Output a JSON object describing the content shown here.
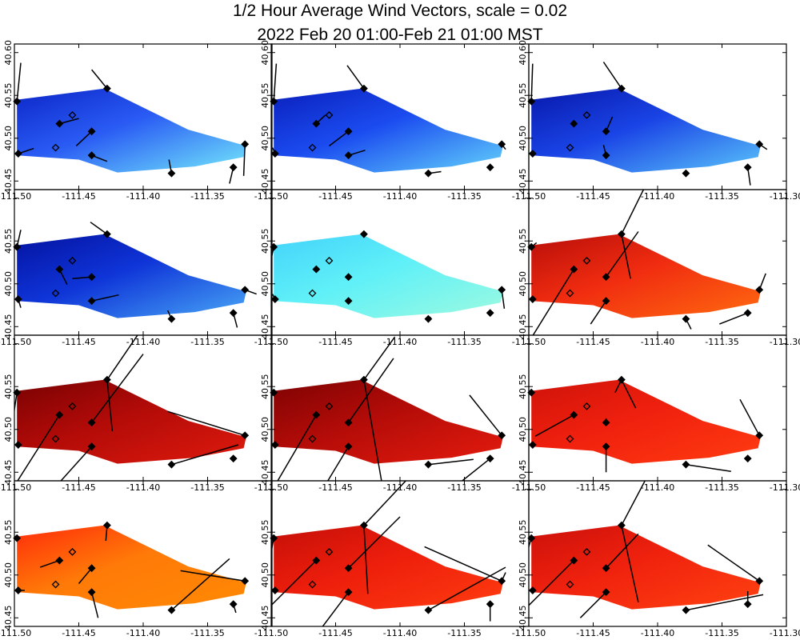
{
  "title": {
    "line1": "1/2 Hour Average Wind Vectors, scale =  0.02",
    "line2": "2022 Feb 20 01:00-Feb 21 01:00 MST"
  },
  "chart_data": {
    "type": "vector-field-small-multiples",
    "grid": {
      "rows": 4,
      "cols": 3
    },
    "xlim": [
      -111.5,
      -111.3
    ],
    "ylim": [
      40.44,
      40.61
    ],
    "x_ticks": [
      -111.5,
      -111.45,
      -111.4,
      -111.35,
      -111.3
    ],
    "y_ticks": [
      40.45,
      40.5,
      40.55,
      40.6
    ],
    "x_tick_labels": [
      "-111.50",
      "-111.45",
      "-111.40",
      "-111.35",
      "-111.30"
    ],
    "y_tick_labels": [
      "40.45",
      "40.50",
      "40.55",
      "40.60"
    ],
    "domain_polygon": [
      [
        -111.498,
        40.545
      ],
      [
        -111.43,
        40.558
      ],
      [
        -111.365,
        40.51
      ],
      [
        -111.32,
        40.491
      ],
      [
        -111.322,
        40.478
      ],
      [
        -111.36,
        40.467
      ],
      [
        -111.42,
        40.46
      ],
      [
        -111.45,
        40.475
      ],
      [
        -111.498,
        40.48
      ]
    ],
    "stations": [
      {
        "x": -111.498,
        "y": 40.543,
        "filled": true
      },
      {
        "x": -111.428,
        "y": 40.558,
        "filled": true
      },
      {
        "x": -111.465,
        "y": 40.517,
        "filled": true
      },
      {
        "x": -111.455,
        "y": 40.527,
        "filled": false
      },
      {
        "x": -111.44,
        "y": 40.508,
        "filled": true
      },
      {
        "x": -111.468,
        "y": 40.489,
        "filled": false
      },
      {
        "x": -111.497,
        "y": 40.482,
        "filled": true
      },
      {
        "x": -111.44,
        "y": 40.48,
        "filled": true
      },
      {
        "x": -111.378,
        "y": 40.459,
        "filled": true
      },
      {
        "x": -111.33,
        "y": 40.466,
        "filled": true
      },
      {
        "x": -111.321,
        "y": 40.493,
        "filled": true
      }
    ],
    "panels": [
      {
        "colors": [
          "#74e9fb",
          "#2a5cf4",
          "#0c26c8"
        ],
        "vectors": [
          [
            -111.498,
            40.543,
            0.003,
            0.045
          ],
          [
            -111.428,
            40.558,
            -0.012,
            0.022
          ],
          [
            -111.465,
            40.517,
            0.015,
            0.006
          ],
          [
            -111.44,
            40.508,
            -0.012,
            -0.017
          ],
          [
            -111.497,
            40.482,
            0.012,
            0.006
          ],
          [
            -111.44,
            40.48,
            0.012,
            -0.007
          ],
          [
            -111.378,
            40.459,
            -0.002,
            0.016
          ],
          [
            -111.33,
            40.466,
            -0.003,
            -0.019
          ],
          [
            -111.321,
            40.493,
            -0.001,
            -0.037
          ]
        ]
      },
      {
        "colors": [
          "#63d3fb",
          "#1b4cf0",
          "#0a1fbc"
        ],
        "vectors": [
          [
            -111.498,
            40.543,
            0.002,
            0.044
          ],
          [
            -111.428,
            40.558,
            -0.013,
            0.027
          ],
          [
            -111.465,
            40.517,
            0.007,
            0.01
          ],
          [
            -111.44,
            40.508,
            -0.015,
            -0.017
          ],
          [
            -111.44,
            40.48,
            0.013,
            0.006
          ],
          [
            -111.497,
            40.482,
            -0.002,
            0.007
          ],
          [
            -111.378,
            40.459,
            0.01,
            0.002
          ],
          [
            -111.321,
            40.493,
            0.003,
            -0.006
          ]
        ]
      },
      {
        "colors": [
          "#5ac5fa",
          "#1a44e6",
          "#0718aa"
        ],
        "vectors": [
          [
            -111.498,
            40.543,
            0.001,
            0.044
          ],
          [
            -111.428,
            40.558,
            -0.014,
            0.031
          ],
          [
            -111.44,
            40.508,
            0.005,
            0.017
          ],
          [
            -111.44,
            40.48,
            -0.002,
            0.012
          ],
          [
            -111.33,
            40.466,
            0.002,
            -0.021
          ],
          [
            -111.321,
            40.493,
            0.006,
            -0.006
          ],
          [
            -111.378,
            40.459,
            0.0,
            0.004
          ]
        ]
      },
      {
        "colors": [
          "#48a6f6",
          "#0f35d8",
          "#0412a0"
        ],
        "vectors": [
          [
            -111.498,
            40.543,
            0.003,
            0.02
          ],
          [
            -111.428,
            40.558,
            -0.013,
            0.014
          ],
          [
            -111.465,
            40.517,
            0.006,
            -0.018
          ],
          [
            -111.44,
            40.508,
            -0.015,
            -0.002
          ],
          [
            -111.44,
            40.48,
            0.021,
            0.007
          ],
          [
            -111.497,
            40.482,
            0.002,
            -0.01
          ],
          [
            -111.378,
            40.459,
            -0.003,
            0.01
          ],
          [
            -111.33,
            40.466,
            0.003,
            -0.017
          ],
          [
            -111.321,
            40.493,
            0.009,
            -0.005
          ]
        ]
      },
      {
        "colors": [
          "#9dfae0",
          "#5ff0f8",
          "#43d3fb"
        ],
        "vectors": [
          [
            -111.498,
            40.543,
            -0.003,
            -0.021
          ],
          [
            -111.497,
            40.482,
            -0.002,
            0.006
          ],
          [
            -111.321,
            40.493,
            0.002,
            -0.022
          ],
          [
            -111.378,
            40.459,
            0.002,
            0.002
          ]
        ]
      },
      {
        "colors": [
          "#ff6a10",
          "#f02c10",
          "#b80e0a"
        ],
        "vectors": [
          [
            -111.498,
            40.543,
            0.004,
            0.005
          ],
          [
            -111.428,
            40.558,
            0.022,
            0.067
          ],
          [
            -111.465,
            40.517,
            -0.035,
            -0.085
          ],
          [
            -111.44,
            40.508,
            0.025,
            0.053
          ],
          [
            -111.44,
            40.48,
            -0.012,
            -0.027
          ],
          [
            -111.378,
            40.459,
            0.004,
            -0.012
          ],
          [
            -111.33,
            40.466,
            -0.022,
            -0.013
          ],
          [
            -111.321,
            40.493,
            0.005,
            0.019
          ],
          [
            -111.428,
            40.558,
            0.007,
            -0.052
          ]
        ]
      },
      {
        "colors": [
          "#de1a0d",
          "#b30b08",
          "#7a0203"
        ],
        "vectors": [
          [
            -111.498,
            40.543,
            -0.01,
            -0.1
          ],
          [
            -111.428,
            40.558,
            0.034,
            0.075
          ],
          [
            -111.465,
            40.517,
            -0.038,
            -0.09
          ],
          [
            -111.44,
            40.508,
            0.04,
            0.08
          ],
          [
            -111.44,
            40.48,
            -0.025,
            -0.042
          ],
          [
            -111.378,
            40.459,
            0.052,
            0.023
          ],
          [
            -111.321,
            40.493,
            -0.06,
            0.028
          ],
          [
            -111.428,
            40.558,
            0.004,
            -0.06
          ]
        ]
      },
      {
        "colors": [
          "#e41b0e",
          "#b40c08",
          "#7e0303"
        ],
        "vectors": [
          [
            -111.498,
            40.543,
            -0.02,
            -0.05
          ],
          [
            -111.428,
            40.558,
            0.024,
            0.05
          ],
          [
            -111.465,
            40.517,
            -0.035,
            -0.09
          ],
          [
            -111.44,
            40.508,
            0.035,
            0.075
          ],
          [
            -111.44,
            40.48,
            -0.016,
            -0.04
          ],
          [
            -111.378,
            40.459,
            0.035,
            0.006
          ],
          [
            -111.33,
            40.466,
            -0.025,
            -0.03
          ],
          [
            -111.321,
            40.493,
            -0.025,
            0.047
          ],
          [
            -111.428,
            40.558,
            0.015,
            -0.13
          ]
        ]
      },
      {
        "colors": [
          "#ff3c10",
          "#f0200e",
          "#cf130a"
        ],
        "vectors": [
          [
            -111.498,
            40.543,
            -0.01,
            0.0
          ],
          [
            -111.428,
            40.558,
            -0.005,
            -0.015
          ],
          [
            -111.428,
            40.558,
            0.011,
            -0.033
          ],
          [
            -111.465,
            40.517,
            -0.03,
            -0.025
          ],
          [
            -111.44,
            40.508,
            0.0,
            0.005
          ],
          [
            -111.44,
            40.48,
            0.0,
            -0.03
          ],
          [
            -111.378,
            40.459,
            0.035,
            -0.008
          ],
          [
            -111.321,
            40.493,
            -0.015,
            0.042
          ]
        ]
      },
      {
        "colors": [
          "#ff8a04",
          "#ff7a08",
          "#ff2c0a"
        ],
        "vectors": [
          [
            -111.498,
            40.543,
            -0.005,
            0.005
          ],
          [
            -111.428,
            40.558,
            -0.001,
            -0.018
          ],
          [
            -111.465,
            40.517,
            -0.015,
            -0.008
          ],
          [
            -111.44,
            40.508,
            -0.01,
            -0.018
          ],
          [
            -111.44,
            40.48,
            0.005,
            -0.03
          ],
          [
            -111.378,
            40.459,
            0.045,
            0.06
          ],
          [
            -111.321,
            40.493,
            -0.05,
            0.012
          ],
          [
            -111.33,
            40.466,
            0.002,
            -0.01
          ],
          [
            -111.497,
            40.482,
            0.005,
            0.0
          ]
        ]
      },
      {
        "colors": [
          "#ff3c0f",
          "#ed1e0c",
          "#c50f08"
        ],
        "vectors": [
          [
            -111.498,
            40.543,
            -0.01,
            -0.08
          ],
          [
            -111.428,
            40.558,
            0.05,
            0.08
          ],
          [
            -111.465,
            40.517,
            -0.04,
            -0.06
          ],
          [
            -111.44,
            40.508,
            0.04,
            0.06
          ],
          [
            -111.44,
            40.48,
            -0.02,
            -0.04
          ],
          [
            -111.378,
            40.459,
            0.06,
            0.05
          ],
          [
            -111.33,
            40.466,
            0.0,
            -0.02
          ],
          [
            -111.321,
            40.493,
            -0.06,
            0.04
          ],
          [
            -111.428,
            40.558,
            0.003,
            -0.08
          ],
          [
            -111.321,
            40.493,
            0.003,
            0.01
          ]
        ]
      },
      {
        "colors": [
          "#ff4210",
          "#f0220e",
          "#cc100a"
        ],
        "vectors": [
          [
            -111.498,
            40.543,
            -0.01,
            -0.05
          ],
          [
            -111.428,
            40.558,
            0.035,
            0.1
          ],
          [
            -111.465,
            40.517,
            -0.04,
            -0.06
          ],
          [
            -111.44,
            40.508,
            0.025,
            0.04
          ],
          [
            -111.44,
            40.48,
            -0.02,
            -0.03
          ],
          [
            -111.378,
            40.459,
            0.06,
            0.018
          ],
          [
            -111.321,
            40.493,
            -0.04,
            0.042
          ],
          [
            -111.428,
            40.558,
            0.013,
            -0.09
          ],
          [
            -111.33,
            40.466,
            0.0,
            0.015
          ]
        ]
      }
    ]
  }
}
